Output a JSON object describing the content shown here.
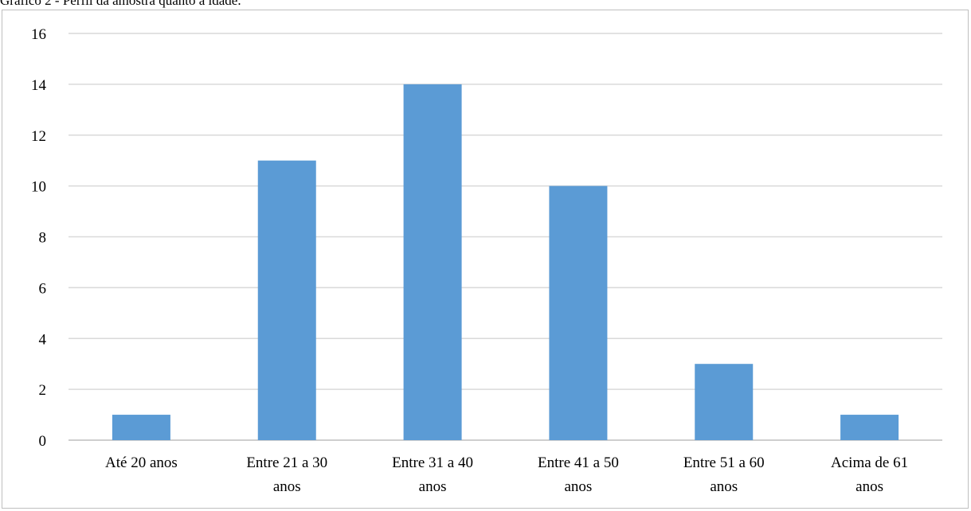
{
  "caption": "Gráfico 2 - Perfil da amostra quanto à idade.",
  "chart_data": {
    "type": "bar",
    "categories": [
      [
        "Até 20 anos"
      ],
      [
        "Entre 21 a 30",
        "anos"
      ],
      [
        "Entre 31 a 40",
        "anos"
      ],
      [
        "Entre 41 a 50",
        "anos"
      ],
      [
        "Entre 51 a 60",
        "anos"
      ],
      [
        "Acima de 61",
        "anos"
      ]
    ],
    "values": [
      1,
      11,
      14,
      10,
      3,
      1
    ],
    "ylim": [
      0,
      16
    ],
    "yticks": [
      0,
      2,
      4,
      6,
      8,
      10,
      12,
      14,
      16
    ],
    "grid": true,
    "legend": "none",
    "bar_color": "#5b9bd5",
    "grid_color": "#d9d9d9",
    "axis_color": "#bfbfbf"
  }
}
